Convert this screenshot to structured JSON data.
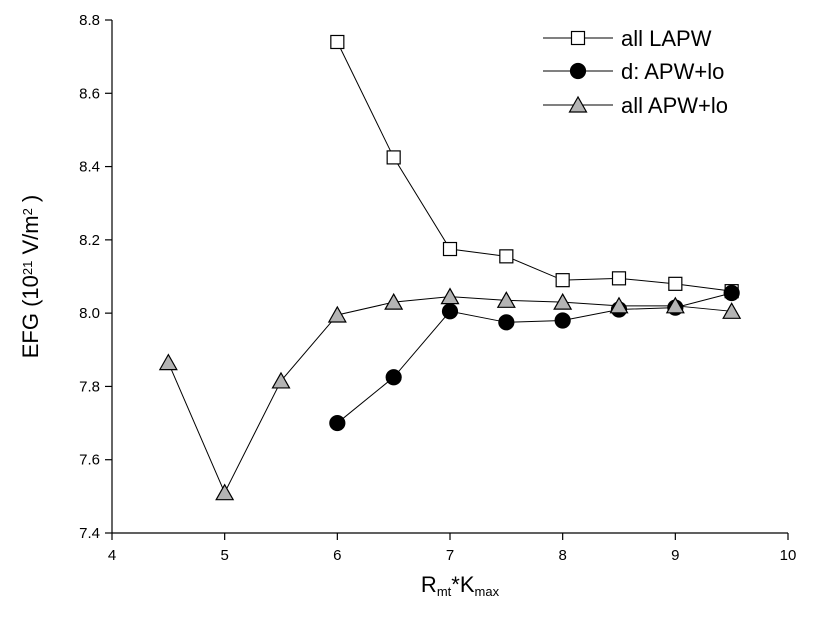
{
  "chart_data": {
    "type": "line",
    "xlabel": {
      "parts": [
        {
          "text": "R",
          "sub": false
        },
        {
          "text": "mt",
          "sub": true
        },
        {
          "text": "*K",
          "sub": false
        },
        {
          "text": "max",
          "sub": true
        }
      ]
    },
    "ylabel": {
      "parts": [
        {
          "text": "EFG (10",
          "sup": false
        },
        {
          "text": "21",
          "sup": true
        },
        {
          "text": " V/m",
          "sup": false
        },
        {
          "text": "2",
          "sup": true
        },
        {
          "text": " )",
          "sup": false
        }
      ]
    },
    "xlim": [
      4,
      10
    ],
    "ylim": [
      7.4,
      8.8
    ],
    "x_ticks": [
      4,
      5,
      6,
      7,
      8,
      9,
      10
    ],
    "y_ticks": [
      7.4,
      7.6,
      7.8,
      8.0,
      8.2,
      8.4,
      8.6,
      8.8
    ],
    "x_tick_labels": [
      "4",
      "5",
      "6",
      "7",
      "8",
      "9",
      "10"
    ],
    "y_tick_labels": [
      "7.4",
      "7.6",
      "7.8",
      "8.0",
      "8.2",
      "8.4",
      "8.6",
      "8.8"
    ],
    "grid": false,
    "legend_position": "top-right",
    "series": [
      {
        "name": "all LAPW",
        "marker": "square",
        "marker_fill": "#ffffff",
        "marker_stroke": "#000000",
        "x": [
          6,
          6.5,
          7,
          7.5,
          8,
          8.5,
          9,
          9.5
        ],
        "y": [
          8.74,
          8.425,
          8.175,
          8.155,
          8.09,
          8.095,
          8.08,
          8.06
        ]
      },
      {
        "name": "d: APW+lo",
        "marker": "circle",
        "marker_fill": "#000000",
        "marker_stroke": "#000000",
        "x": [
          6,
          6.5,
          7,
          7.5,
          8,
          8.5,
          9,
          9.5
        ],
        "y": [
          7.7,
          7.825,
          8.005,
          7.975,
          7.98,
          8.01,
          8.015,
          8.055
        ]
      },
      {
        "name": "all APW+lo",
        "marker": "triangle",
        "marker_fill": "#b4b4b4",
        "marker_stroke": "#000000",
        "x": [
          4.5,
          5,
          5.5,
          6,
          6.5,
          7,
          7.5,
          8,
          8.5,
          9,
          9.5
        ],
        "y": [
          7.865,
          7.51,
          7.815,
          7.995,
          8.03,
          8.045,
          8.035,
          8.03,
          8.02,
          8.02,
          8.005
        ]
      }
    ]
  }
}
